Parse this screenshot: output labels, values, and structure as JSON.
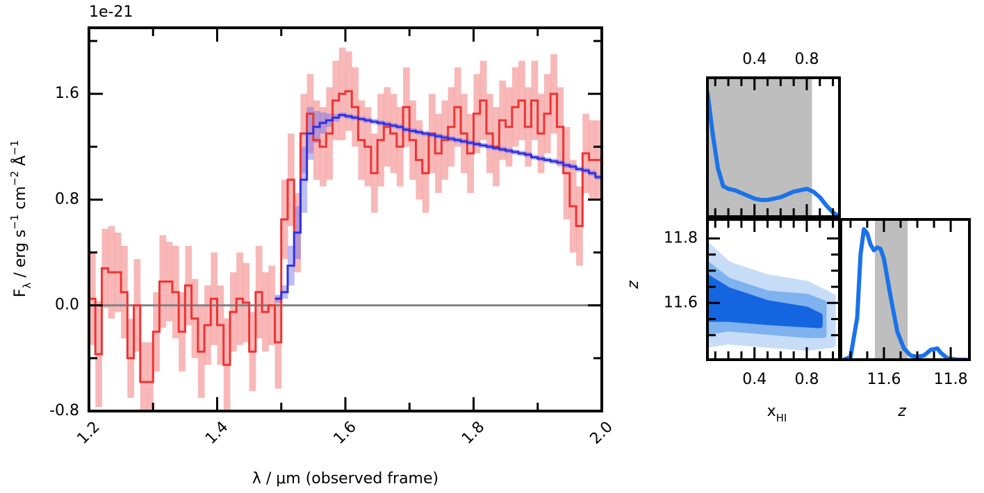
{
  "chart_data": [
    {
      "type": "step",
      "offset_label": "1e-21",
      "ylabel_parts": [
        {
          "text": "F"
        },
        {
          "text": "λ",
          "sub": true
        },
        {
          "text": " / erg s"
        },
        {
          "text": "−1",
          "sup": true
        },
        {
          "text": " cm"
        },
        {
          "text": "−2",
          "sup": true
        },
        {
          "text": " Å"
        },
        {
          "text": "−1",
          "sup": true
        }
      ],
      "xlabel": "λ / μm (observed frame)",
      "xlim": [
        1.2,
        2.0
      ],
      "ylim": [
        -0.8,
        2.1
      ],
      "xticks": [
        1.2,
        1.4,
        1.6,
        1.8,
        {
          "value": 2,
          "label": "2.0"
        }
      ],
      "minor_xticks": [
        1.3,
        1.5,
        1.7,
        1.9
      ],
      "yticks": [
        -0.8,
        {
          "value": 0,
          "label": "0.0"
        },
        0.8,
        1.6
      ],
      "minor_yticks": [
        -0.4,
        0.4,
        1.2,
        2.0
      ],
      "hline": {
        "value": 0,
        "color": "#808080"
      },
      "series": [
        {
          "color": "#ee3333",
          "band_color": "#f48888",
          "x": [
            1.205,
            1.215,
            1.225,
            1.235,
            1.245,
            1.255,
            1.265,
            1.275,
            1.285,
            1.295,
            1.305,
            1.315,
            1.325,
            1.335,
            1.345,
            1.355,
            1.365,
            1.375,
            1.385,
            1.395,
            1.405,
            1.415,
            1.425,
            1.435,
            1.445,
            1.455,
            1.465,
            1.475,
            1.485,
            1.495,
            1.505,
            1.515,
            1.525,
            1.535,
            1.545,
            1.555,
            1.565,
            1.575,
            1.585,
            1.595,
            1.605,
            1.615,
            1.625,
            1.635,
            1.645,
            1.655,
            1.665,
            1.675,
            1.685,
            1.695,
            1.705,
            1.715,
            1.725,
            1.735,
            1.745,
            1.755,
            1.765,
            1.775,
            1.785,
            1.795,
            1.805,
            1.815,
            1.825,
            1.835,
            1.845,
            1.855,
            1.865,
            1.875,
            1.885,
            1.895,
            1.905,
            1.915,
            1.925,
            1.935,
            1.945,
            1.955,
            1.965,
            1.975,
            1.985,
            1.995
          ],
          "values": [
            0.05,
            -0.37,
            0.28,
            0.25,
            0.25,
            0.1,
            -0.4,
            0.0,
            -0.58,
            -0.58,
            -0.2,
            0.18,
            0.18,
            0.1,
            -0.2,
            0.15,
            -0.1,
            -0.35,
            -0.15,
            0.05,
            -0.15,
            -0.45,
            -0.05,
            0.05,
            0.02,
            -0.35,
            0.1,
            -0.05,
            0.0,
            -0.28,
            0.65,
            0.95,
            0.55,
            1.3,
            1.45,
            1.25,
            1.2,
            1.3,
            1.55,
            1.6,
            1.62,
            1.5,
            1.25,
            1.2,
            1.0,
            1.25,
            1.35,
            1.3,
            1.2,
            1.5,
            1.25,
            1.1,
            1.0,
            1.3,
            1.15,
            1.25,
            1.35,
            1.5,
            1.3,
            1.15,
            1.45,
            1.55,
            1.3,
            1.2,
            1.4,
            1.35,
            1.5,
            1.55,
            1.35,
            1.55,
            1.3,
            1.45,
            1.6,
            1.35,
            1.0,
            0.75,
            0.6,
            1.15,
            1.1,
            1.1
          ],
          "errors": [
            0.35,
            0.4,
            0.3,
            0.35,
            0.3,
            0.35,
            0.3,
            0.35,
            0.3,
            0.3,
            0.3,
            0.35,
            0.3,
            0.35,
            0.3,
            0.3,
            0.3,
            0.35,
            0.3,
            0.35,
            0.3,
            0.35,
            0.3,
            0.35,
            0.3,
            0.3,
            0.35,
            0.3,
            0.3,
            0.35,
            0.3,
            0.35,
            0.3,
            0.3,
            0.3,
            0.3,
            0.3,
            0.35,
            0.3,
            0.35,
            0.3,
            0.3,
            0.3,
            0.3,
            0.3,
            0.35,
            0.3,
            0.3,
            0.3,
            0.3,
            0.3,
            0.3,
            0.3,
            0.3,
            0.3,
            0.3,
            0.3,
            0.3,
            0.3,
            0.3,
            0.3,
            0.3,
            0.3,
            0.3,
            0.3,
            0.3,
            0.3,
            0.3,
            0.3,
            0.3,
            0.3,
            0.3,
            0.3,
            0.3,
            0.35,
            0.35,
            0.3,
            0.3,
            0.3,
            0.3
          ]
        },
        {
          "color": "#3030e0",
          "band_color": "#6a6aee",
          "x": [
            1.495,
            1.505,
            1.515,
            1.525,
            1.535,
            1.545,
            1.555,
            1.565,
            1.575,
            1.585,
            1.595,
            1.605,
            1.615,
            1.625,
            1.635,
            1.645,
            1.655,
            1.665,
            1.675,
            1.685,
            1.695,
            1.705,
            1.715,
            1.725,
            1.735,
            1.745,
            1.755,
            1.765,
            1.775,
            1.785,
            1.795,
            1.805,
            1.815,
            1.825,
            1.835,
            1.845,
            1.855,
            1.865,
            1.875,
            1.885,
            1.895,
            1.905,
            1.915,
            1.925,
            1.935,
            1.945,
            1.955,
            1.965,
            1.975,
            1.985,
            1.995
          ],
          "values": [
            0.05,
            0.1,
            0.3,
            0.55,
            0.95,
            1.3,
            1.35,
            1.38,
            1.4,
            1.42,
            1.44,
            1.43,
            1.42,
            1.41,
            1.4,
            1.39,
            1.38,
            1.37,
            1.36,
            1.35,
            1.33,
            1.32,
            1.31,
            1.3,
            1.29,
            1.28,
            1.27,
            1.26,
            1.25,
            1.24,
            1.23,
            1.22,
            1.21,
            1.2,
            1.19,
            1.18,
            1.17,
            1.16,
            1.15,
            1.14,
            1.12,
            1.11,
            1.1,
            1.09,
            1.08,
            1.06,
            1.05,
            1.03,
            1.02,
            1.0,
            0.97
          ],
          "errors": [
            0.03,
            0.05,
            0.15,
            0.2,
            0.25,
            0.2,
            0.12,
            0.08,
            0.05,
            0.03,
            0.02,
            0.02,
            0.02,
            0.02,
            0.02,
            0.02,
            0.02,
            0.02,
            0.02,
            0.02,
            0.02,
            0.02,
            0.02,
            0.02,
            0.02,
            0.02,
            0.02,
            0.02,
            0.02,
            0.02,
            0.02,
            0.02,
            0.02,
            0.02,
            0.02,
            0.02,
            0.02,
            0.02,
            0.02,
            0.02,
            0.02,
            0.02,
            0.02,
            0.02,
            0.02,
            0.02,
            0.02,
            0.02,
            0.02,
            0.02,
            0.02
          ]
        }
      ]
    },
    {
      "type": "line",
      "xlim": [
        0.04,
        1.05
      ],
      "ylim": [
        0,
        1
      ],
      "xticks": [
        0.4,
        0.8
      ],
      "minor_xticks": [
        0.1,
        0.2,
        0.3,
        0.5,
        0.6,
        0.7,
        0.9,
        1.0
      ],
      "shade": [
        0.04,
        0.84
      ],
      "shade_color": "#bebebe",
      "color": "#1a73e8",
      "x": [
        0.04,
        0.08,
        0.12,
        0.16,
        0.2,
        0.25,
        0.3,
        0.35,
        0.4,
        0.45,
        0.5,
        0.55,
        0.6,
        0.65,
        0.7,
        0.75,
        0.8,
        0.85,
        0.9,
        0.95,
        1.0,
        1.05
      ],
      "values": [
        0.9,
        0.6,
        0.35,
        0.22,
        0.2,
        0.19,
        0.17,
        0.15,
        0.13,
        0.12,
        0.12,
        0.13,
        0.14,
        0.16,
        0.18,
        0.19,
        0.2,
        0.18,
        0.14,
        0.08,
        0.03,
        0.0
      ]
    },
    {
      "type": "contour",
      "xlim": [
        0.04,
        1.05
      ],
      "ylim": [
        11.424,
        11.859
      ],
      "xticks": [
        0.4,
        0.8
      ],
      "minor_xticks": [
        0.1,
        0.2,
        0.3,
        0.5,
        0.6,
        0.7,
        0.9,
        1.0
      ],
      "yticks": [
        11.6,
        11.8
      ],
      "minor_yticks": [
        11.5,
        11.55,
        11.65,
        11.7,
        11.75
      ],
      "xlabel_parts": [
        {
          "text": "x"
        },
        {
          "text": "HI",
          "sub": true
        }
      ],
      "ylabel": "z",
      "contours": [
        {
          "color": "#c6dcf7",
          "x": [
            0.04,
            0.2,
            0.5,
            0.8,
            1.0,
            1.0,
            0.8,
            0.5,
            0.2,
            0.04
          ],
          "y": [
            11.78,
            11.72,
            11.68,
            11.66,
            11.62,
            11.47,
            11.46,
            11.47,
            11.48,
            11.47
          ]
        },
        {
          "color": "#7fb2ef",
          "x": [
            0.04,
            0.2,
            0.5,
            0.8,
            0.93,
            0.93,
            0.8,
            0.5,
            0.2,
            0.04
          ],
          "y": [
            11.72,
            11.67,
            11.63,
            11.62,
            11.6,
            11.5,
            11.5,
            11.51,
            11.52,
            11.51
          ]
        },
        {
          "color": "#1565e0",
          "x": [
            0.04,
            0.2,
            0.5,
            0.8,
            0.9,
            0.9,
            0.5,
            0.2,
            0.04
          ],
          "y": [
            11.68,
            11.64,
            11.6,
            11.58,
            11.56,
            11.53,
            11.54,
            11.55,
            11.55
          ]
        }
      ]
    },
    {
      "type": "line",
      "xlim": [
        11.471,
        11.856
      ],
      "ylim": [
        0,
        1
      ],
      "xticks": [
        11.6,
        11.8
      ],
      "minor_xticks": [
        11.5,
        11.55,
        11.65,
        11.7,
        11.75
      ],
      "xlabel": "z",
      "shade": [
        11.573,
        11.671
      ],
      "shade_color": "#bebebe",
      "color": "#1a73e8",
      "x": [
        11.48,
        11.5,
        11.52,
        11.53,
        11.54,
        11.55,
        11.56,
        11.57,
        11.58,
        11.59,
        11.6,
        11.62,
        11.64,
        11.66,
        11.68,
        11.7,
        11.72,
        11.74,
        11.76,
        11.77,
        11.79,
        11.82,
        11.85
      ],
      "values": [
        0,
        0.02,
        0.3,
        0.75,
        0.93,
        0.9,
        0.82,
        0.78,
        0.8,
        0.79,
        0.72,
        0.45,
        0.2,
        0.08,
        0.03,
        0.02,
        0.03,
        0.07,
        0.08,
        0.05,
        0.01,
        0,
        0
      ]
    }
  ]
}
